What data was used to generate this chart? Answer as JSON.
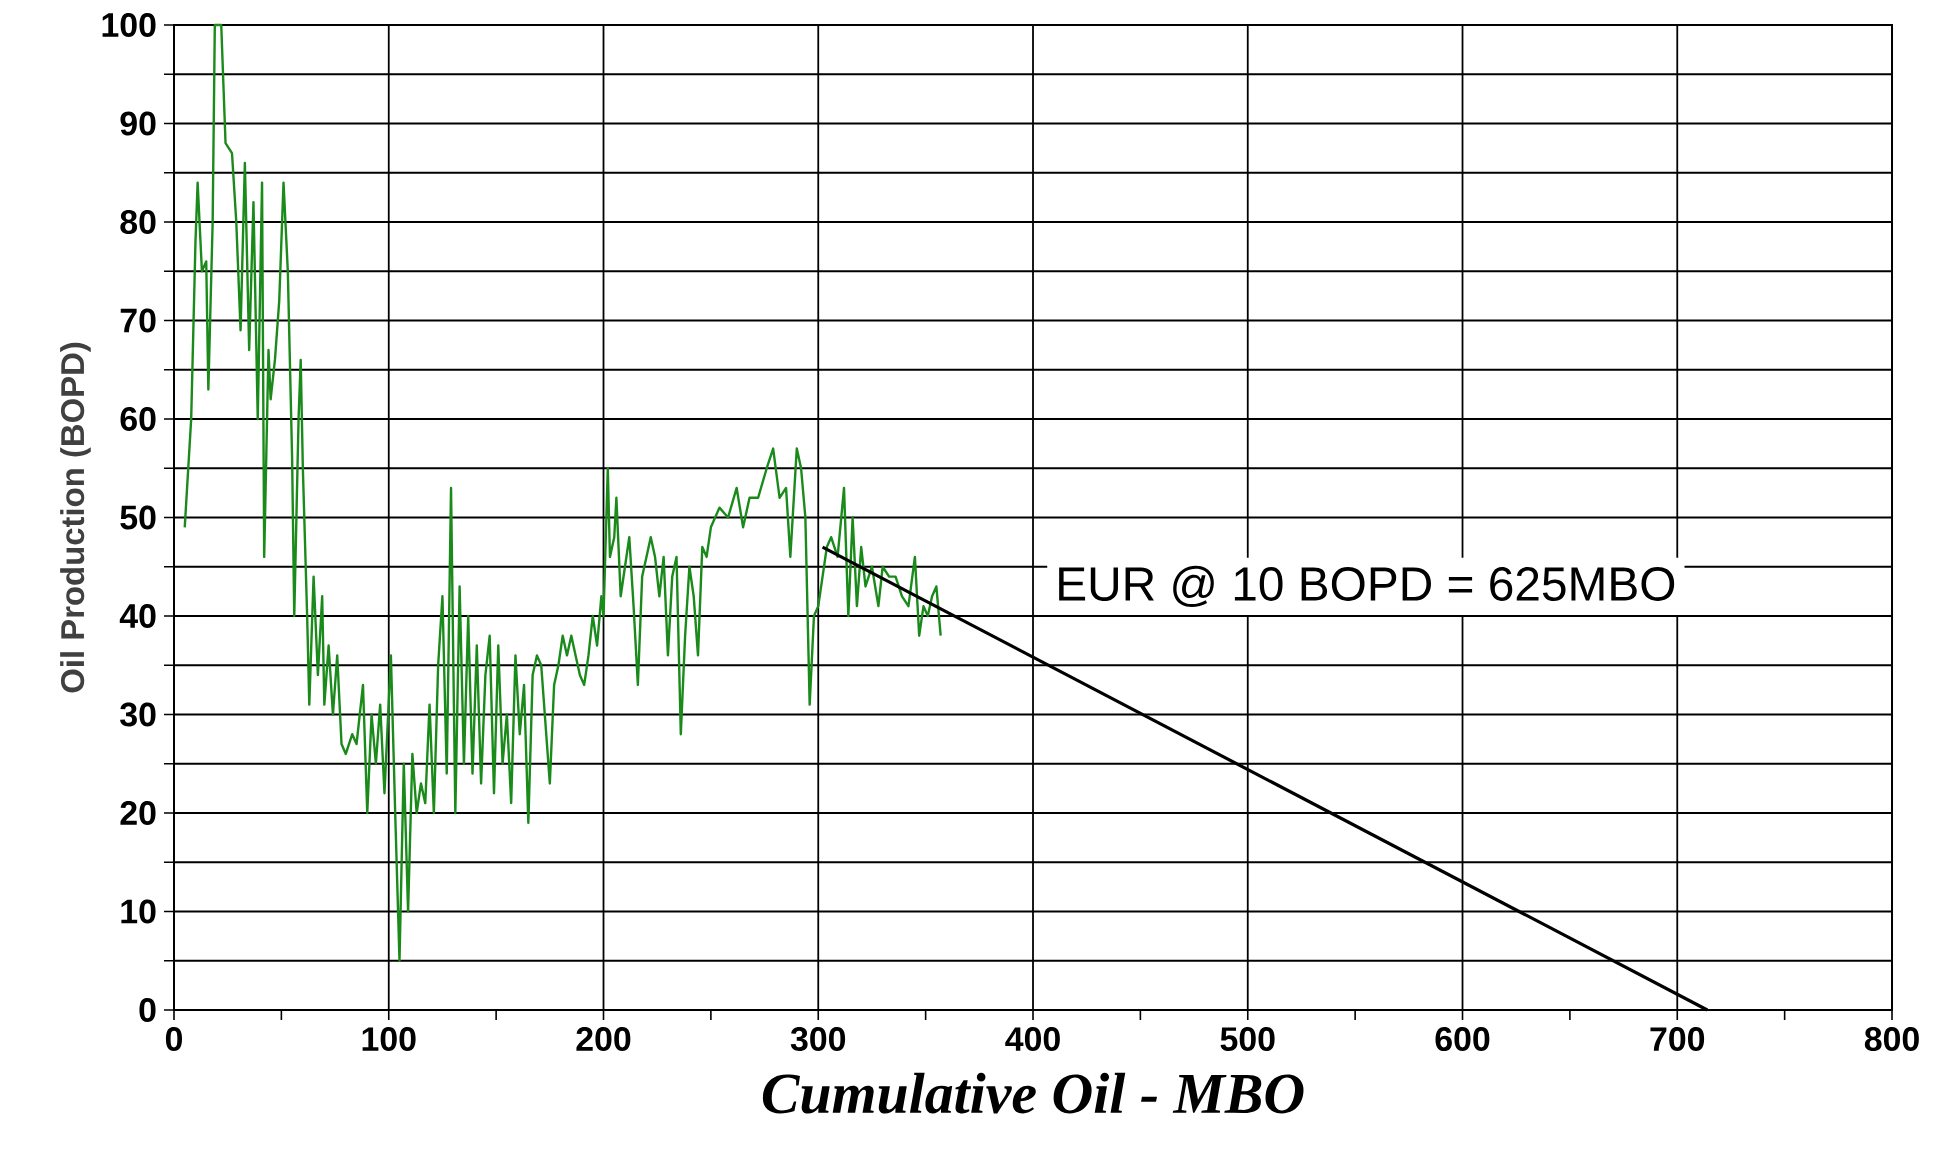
{
  "chart_data": {
    "type": "line",
    "xlabel": "Cumulative Oil - MBO",
    "ylabel": "Oil Production (BOPD)",
    "annotations": [
      "EUR @ 10 BOPD = 625MBO"
    ],
    "xlim": [
      0,
      800
    ],
    "ylim": [
      0,
      100
    ],
    "xticks": [
      0,
      {
        "value": 50,
        "label": null
      },
      100,
      {
        "value": 150,
        "label": null
      },
      200,
      {
        "value": 250,
        "label": null
      },
      300,
      {
        "value": 350,
        "label": null
      },
      400,
      {
        "value": 450,
        "label": null
      },
      500,
      {
        "value": 550,
        "label": null
      },
      600,
      {
        "value": 650,
        "label": null
      },
      700,
      {
        "value": 750,
        "label": null
      },
      800
    ],
    "yticks": [
      0,
      {
        "value": 5,
        "label": null
      },
      10,
      {
        "value": 15,
        "label": null
      },
      20,
      {
        "value": 25,
        "label": null
      },
      30,
      {
        "value": 35,
        "label": null
      },
      40,
      {
        "value": 45,
        "label": null
      },
      50,
      {
        "value": 55,
        "label": null
      },
      60,
      {
        "value": 65,
        "label": null
      },
      70,
      {
        "value": 75,
        "label": null
      },
      80,
      {
        "value": 85,
        "label": null
      },
      90,
      {
        "value": 95,
        "label": null
      },
      100
    ],
    "grid": true,
    "marker": "none",
    "line_style": "solid",
    "series": [
      {
        "color": "#1a8a1a",
        "x": [
          5,
          8,
          10,
          11,
          13,
          15,
          16,
          18,
          19,
          22,
          24,
          27,
          29,
          31,
          33,
          35,
          37,
          39,
          41,
          42,
          44,
          45,
          47,
          49,
          51,
          53,
          55,
          56,
          58,
          59,
          60,
          62,
          63,
          65,
          67,
          69,
          70,
          72,
          74,
          76,
          78,
          80,
          83,
          85,
          88,
          90,
          92,
          94,
          96,
          98,
          101,
          103,
          105,
          107,
          109,
          111,
          113,
          115,
          117,
          119,
          121,
          123,
          125,
          127,
          129,
          131,
          133,
          135,
          137,
          139,
          141,
          143,
          145,
          147,
          149,
          151,
          153,
          155,
          157,
          159,
          161,
          163,
          165,
          167,
          169,
          171,
          173,
          175,
          177,
          179,
          181,
          183,
          185,
          187,
          189,
          191,
          193,
          195,
          197,
          199,
          200,
          202,
          203,
          205,
          206,
          208,
          210,
          212,
          214,
          216,
          218,
          220,
          222,
          224,
          226,
          228,
          230,
          232,
          234,
          236,
          238,
          240,
          242,
          244,
          246,
          248,
          250,
          254,
          258,
          262,
          265,
          268,
          272,
          276,
          279,
          282,
          285,
          287,
          290,
          292,
          294,
          296,
          298,
          300,
          302,
          304,
          306,
          309,
          312,
          314,
          316,
          318,
          320,
          322,
          325,
          328,
          330,
          333,
          336,
          339,
          342,
          345,
          347,
          349,
          351,
          353,
          355,
          357
        ],
        "values": [
          49,
          60,
          78,
          84,
          75,
          76,
          63,
          80,
          100,
          100,
          88,
          87,
          80,
          69,
          86,
          67,
          82,
          60,
          84,
          46,
          67,
          62,
          66,
          72,
          84,
          75,
          56,
          40,
          60,
          66,
          55,
          40,
          31,
          44,
          34,
          42,
          31,
          37,
          30,
          36,
          27,
          26,
          28,
          27,
          33,
          20,
          30,
          25,
          31,
          22,
          36,
          20,
          5,
          25,
          10,
          26,
          20,
          23,
          21,
          31,
          20,
          35,
          42,
          24,
          53,
          20,
          43,
          25,
          40,
          24,
          37,
          23,
          34,
          38,
          22,
          37,
          25,
          30,
          21,
          36,
          28,
          33,
          19,
          34,
          36,
          35,
          29,
          23,
          33,
          35,
          38,
          36,
          38,
          36,
          34,
          33,
          36,
          40,
          37,
          42,
          40,
          55,
          46,
          48,
          52,
          42,
          45,
          48,
          41,
          33,
          44,
          46,
          48,
          46,
          42,
          46,
          36,
          44,
          46,
          28,
          38,
          45,
          42,
          36,
          47,
          46,
          49,
          51,
          50,
          53,
          49,
          52,
          52,
          55,
          57,
          52,
          53,
          46,
          57,
          55,
          50,
          31,
          40,
          41,
          44,
          47,
          48,
          46,
          53,
          40,
          50,
          41,
          47,
          43,
          45,
          41,
          45,
          44,
          44,
          42,
          41,
          46,
          38,
          41,
          40,
          42,
          43,
          38
        ]
      },
      {
        "type": "line",
        "color": "#000000",
        "x": [
          302,
          714
        ],
        "values": [
          47,
          0
        ]
      }
    ]
  }
}
